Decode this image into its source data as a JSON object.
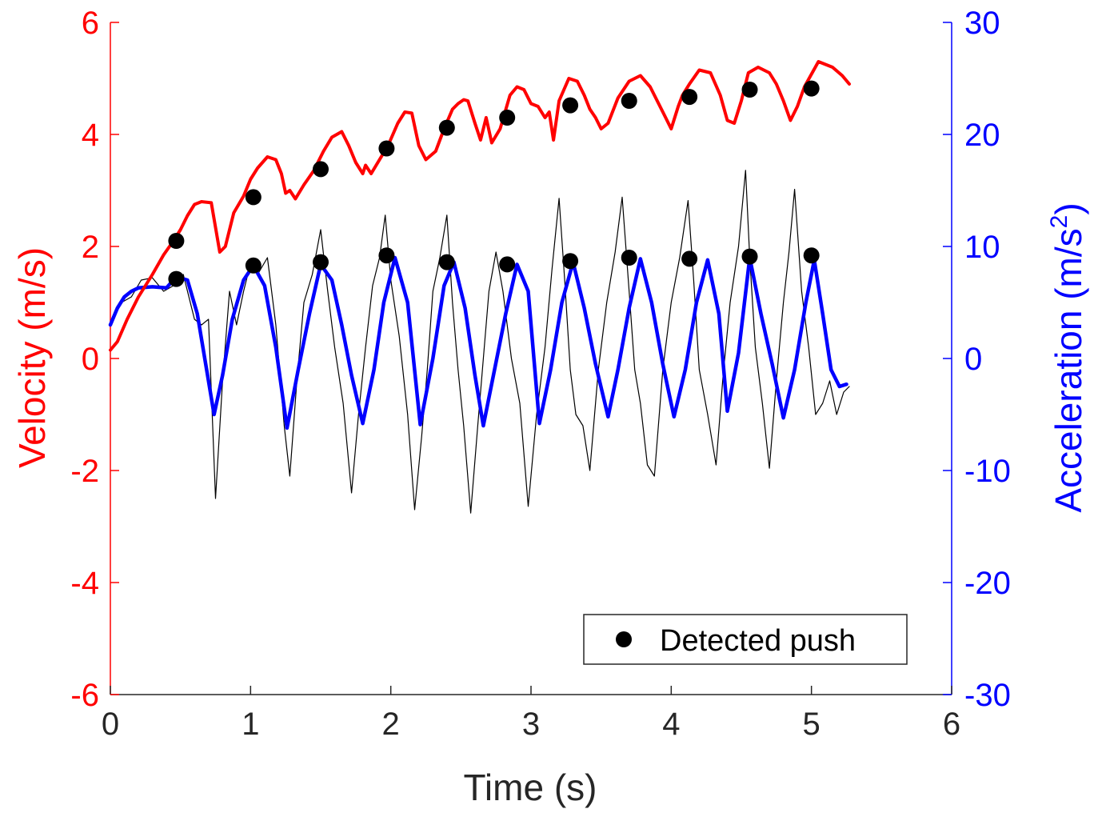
{
  "chart_data": {
    "type": "line",
    "xlabel": "Time (s)",
    "ylabel_left": "Velocity (m/s)",
    "ylabel_right": "Acceleration (m/s",
    "ylabel_right_superscript": "2",
    "ylabel_right_suffix": ")",
    "xlim": [
      0,
      6
    ],
    "ylim_left": [
      -6,
      6
    ],
    "ylim_right": [
      -30,
      30
    ],
    "x_ticks": [
      "0",
      "1",
      "2",
      "3",
      "4",
      "5",
      "6"
    ],
    "y_left_ticks": [
      "-6",
      "-4",
      "-2",
      "0",
      "2",
      "4",
      "6"
    ],
    "y_right_ticks": [
      "-30",
      "-20",
      "-10",
      "0",
      "10",
      "20",
      "30"
    ],
    "grid": false,
    "legend_position": "bottom-right",
    "legend": [
      {
        "label": "Detected push",
        "marker": "filled-circle",
        "color": "#000000"
      }
    ],
    "colors": {
      "velocity": "#ff0000",
      "acc_smooth": "#0000ff",
      "acc_raw": "#000000",
      "push": "#000000",
      "axis_right": "#0000ff",
      "axis_left": "#ff0000"
    },
    "series": [
      {
        "axis": "left",
        "color": "#ff0000",
        "x": [
          0,
          0.05,
          0.12,
          0.2,
          0.3,
          0.38,
          0.45,
          0.5,
          0.55,
          0.6,
          0.65,
          0.72,
          0.78,
          0.82,
          0.88,
          0.95,
          1.0,
          1.05,
          1.12,
          1.18,
          1.22,
          1.25,
          1.28,
          1.32,
          1.38,
          1.45,
          1.52,
          1.58,
          1.65,
          1.7,
          1.75,
          1.8,
          1.82,
          1.86,
          1.92,
          1.98,
          2.05,
          2.1,
          2.15,
          2.2,
          2.25,
          2.32,
          2.38,
          2.44,
          2.48,
          2.52,
          2.55,
          2.6,
          2.64,
          2.68,
          2.72,
          2.78,
          2.85,
          2.9,
          2.95,
          3.0,
          3.05,
          3.1,
          3.13,
          3.16,
          3.2,
          3.27,
          3.33,
          3.38,
          3.42,
          3.46,
          3.5,
          3.55,
          3.62,
          3.7,
          3.78,
          3.85,
          3.9,
          3.95,
          4.0,
          4.05,
          4.08,
          4.13,
          4.2,
          4.28,
          4.35,
          4.4,
          4.45,
          4.5,
          4.55,
          4.62,
          4.7,
          4.75,
          4.8,
          4.85,
          4.9,
          4.95,
          5.05,
          5.15,
          5.22,
          5.27
        ],
        "y": [
          0.15,
          0.3,
          0.7,
          1.1,
          1.5,
          1.85,
          2.1,
          2.3,
          2.55,
          2.75,
          2.8,
          2.78,
          1.9,
          2.0,
          2.6,
          2.9,
          3.2,
          3.4,
          3.6,
          3.55,
          3.3,
          2.95,
          3.0,
          2.85,
          3.1,
          3.35,
          3.7,
          3.95,
          4.05,
          3.8,
          3.5,
          3.3,
          3.45,
          3.3,
          3.55,
          3.8,
          4.2,
          4.4,
          4.38,
          3.8,
          3.55,
          3.7,
          4.1,
          4.45,
          4.55,
          4.62,
          4.6,
          4.2,
          3.9,
          4.3,
          3.85,
          4.1,
          4.7,
          4.85,
          4.8,
          4.55,
          4.5,
          4.3,
          4.4,
          3.9,
          4.6,
          5.0,
          4.95,
          4.7,
          4.45,
          4.3,
          4.1,
          4.2,
          4.65,
          4.95,
          5.05,
          4.85,
          4.6,
          4.35,
          4.1,
          4.5,
          4.7,
          4.9,
          5.15,
          5.1,
          4.7,
          4.25,
          4.2,
          4.6,
          5.1,
          5.2,
          5.1,
          4.9,
          4.6,
          4.25,
          4.5,
          4.85,
          5.3,
          5.2,
          5.05,
          4.9
        ]
      },
      {
        "axis": "right",
        "color": "#0000ff",
        "x": [
          0,
          0.05,
          0.1,
          0.15,
          0.2,
          0.3,
          0.4,
          0.47,
          0.55,
          0.62,
          0.68,
          0.74,
          0.8,
          0.87,
          0.95,
          1.02,
          1.1,
          1.18,
          1.26,
          1.34,
          1.42,
          1.5,
          1.58,
          1.65,
          1.72,
          1.8,
          1.88,
          1.95,
          2.03,
          2.12,
          2.21,
          2.3,
          2.38,
          2.45,
          2.53,
          2.6,
          2.66,
          2.74,
          2.82,
          2.9,
          2.98,
          3.06,
          3.14,
          3.22,
          3.3,
          3.38,
          3.46,
          3.55,
          3.62,
          3.7,
          3.78,
          3.86,
          3.94,
          4.02,
          4.1,
          4.18,
          4.26,
          4.34,
          4.4,
          4.48,
          4.56,
          4.64,
          4.72,
          4.8,
          4.88,
          4.96,
          5.02,
          5.08,
          5.14,
          5.2,
          5.25
        ],
        "y": [
          3,
          4.5,
          5.5,
          6,
          6.3,
          6.4,
          6.3,
          7.3,
          7,
          4,
          -0.5,
          -5,
          -1.5,
          3.5,
          7,
          8.3,
          6.5,
          1,
          -6.2,
          -1,
          4,
          8.4,
          7,
          3,
          -1.5,
          -5.8,
          -1,
          5,
          9,
          5,
          -5.9,
          0,
          6.5,
          8.6,
          4.5,
          -1.5,
          -6,
          -1,
          4,
          8.4,
          6,
          -5.8,
          -1,
          5,
          8.6,
          4.5,
          -0.5,
          -5.2,
          -1,
          4.5,
          8.9,
          5,
          -0.5,
          -5.2,
          -1,
          5,
          8.8,
          4,
          -4.7,
          0.5,
          9,
          4,
          -0.5,
          -5.3,
          -1,
          5,
          8.8,
          4,
          -1,
          -2.5,
          -2.3
        ]
      },
      {
        "axis": "right",
        "color": "#000000",
        "x": [
          0,
          0.08,
          0.15,
          0.22,
          0.3,
          0.38,
          0.45,
          0.52,
          0.6,
          0.65,
          0.7,
          0.75,
          0.8,
          0.85,
          0.9,
          0.95,
          1.0,
          1.05,
          1.12,
          1.18,
          1.24,
          1.28,
          1.33,
          1.38,
          1.44,
          1.5,
          1.55,
          1.6,
          1.66,
          1.72,
          1.77,
          1.82,
          1.87,
          1.92,
          1.96,
          2.0,
          2.06,
          2.12,
          2.17,
          2.22,
          2.26,
          2.3,
          2.35,
          2.4,
          2.44,
          2.48,
          2.52,
          2.57,
          2.62,
          2.66,
          2.7,
          2.75,
          2.8,
          2.86,
          2.92,
          2.98,
          3.04,
          3.1,
          3.15,
          3.2,
          3.24,
          3.28,
          3.32,
          3.37,
          3.42,
          3.48,
          3.54,
          3.6,
          3.65,
          3.7,
          3.74,
          3.78,
          3.83,
          3.88,
          3.94,
          4.0,
          4.06,
          4.12,
          4.16,
          4.2,
          4.26,
          4.32,
          4.37,
          4.42,
          4.48,
          4.53,
          4.56,
          4.6,
          4.65,
          4.7,
          4.75,
          4.8,
          4.84,
          4.88,
          4.93,
          4.98,
          5.03,
          5.08,
          5.13,
          5.18,
          5.23,
          5.27
        ],
        "y": [
          3,
          5,
          5.5,
          7,
          7.2,
          6,
          6.5,
          7.5,
          3.5,
          3,
          3.5,
          -12.5,
          -2,
          6,
          3,
          6,
          8.5,
          7.5,
          9,
          3,
          -6,
          -10.5,
          -2,
          5,
          7.5,
          11.5,
          6,
          1,
          -4,
          -12,
          -5,
          1,
          6.5,
          9,
          12.8,
          7,
          2,
          -5,
          -13.5,
          -7,
          -1,
          6,
          9,
          12.8,
          5,
          -1,
          -6,
          -13.8,
          -6,
          0,
          6,
          9.5,
          6,
          0,
          -4,
          -13.2,
          -5,
          1,
          8,
          14.3,
          7,
          -1,
          -5,
          -6,
          -10,
          -1,
          5,
          9.5,
          14.4,
          6,
          -1,
          -4,
          -9.5,
          -10.5,
          -1,
          5,
          9,
          14.1,
          7,
          -1,
          -5,
          -9.5,
          -1.5,
          5,
          10,
          16.8,
          9,
          1,
          -4,
          -9.8,
          -2,
          5,
          9.5,
          15.1,
          6,
          1,
          -5,
          -4,
          -2,
          -5,
          -3,
          -2.5
        ]
      }
    ],
    "pushes": {
      "x": [
        0.47,
        1.02,
        1.5,
        1.97,
        2.4,
        2.83,
        3.28,
        3.7,
        4.13,
        4.56,
        5.0
      ],
      "velocity": [
        2.1,
        2.88,
        3.38,
        3.75,
        4.12,
        4.3,
        4.52,
        4.6,
        4.67,
        4.8,
        4.82
      ],
      "acceleration": [
        7.1,
        8.3,
        8.6,
        9.2,
        8.6,
        8.4,
        8.7,
        9.0,
        8.9,
        9.1,
        9.2
      ]
    }
  }
}
